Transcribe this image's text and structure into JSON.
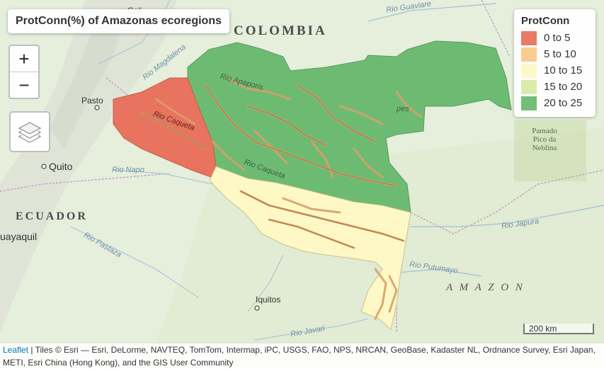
{
  "title": "ProtConn(%) of Amazonas ecoregions",
  "zoom": {
    "in_label": "+",
    "out_label": "−"
  },
  "legend": {
    "title": "ProtConn",
    "items": [
      {
        "label": "0 to 5",
        "color": "#e8735e"
      },
      {
        "label": "5 to 10",
        "color": "#f9c98a"
      },
      {
        "label": "10 to 15",
        "color": "#fdf8c6"
      },
      {
        "label": "15 to 20",
        "color": "#d9eaa6"
      },
      {
        "label": "20 to 25",
        "color": "#6dbb73"
      }
    ]
  },
  "map_labels": {
    "colombia": "COLOMBIA",
    "ecuador": "ECUADOR",
    "amazon": "A M A Z O N",
    "cali": "Cali",
    "pasto": "Pasto",
    "quito": "Quito",
    "guayaquil": "uayaquil",
    "iquitos": "Iquitos",
    "pamado": "Pamado Pico da Neblina",
    "rio_guaviare": "Rio Guaviare",
    "rio_magdalena": "Rio Magdalena",
    "rio_apaporis": "Rio Apaporis",
    "rio_caqueta": "Rio Caqueta",
    "rio_caqueta2": "Rio Caqueta",
    "rio_napo": "Rio Napo",
    "rio_pastaza": "Rio Pastaza",
    "rio_japura": "Rio Japura",
    "rio_putumayo": "Rio Putumayo",
    "rio_javari": "Rio Javari",
    "rio_pes": "pes"
  },
  "scale": "200 km",
  "attribution": {
    "leaflet": "Leaflet",
    "text": " | Tiles © Esri — Esri, DeLorme, NAVTEQ, TomTom, Intermap, iPC, USGS, FAO, NPS, NRCAN, GeoBase, Kadaster NL, Ordnance Survey, Esri Japan, METI, Esri China (Hong Kong), and the GIS User Community"
  },
  "regions": [
    {
      "name": "red-region",
      "protconn_class": "0 to 5",
      "color": "#e8735e"
    },
    {
      "name": "green-region",
      "protconn_class": "20 to 25",
      "color": "#6dbb73"
    },
    {
      "name": "yellow-region",
      "protconn_class": "10 to 15",
      "color": "#fdf8c6"
    }
  ]
}
